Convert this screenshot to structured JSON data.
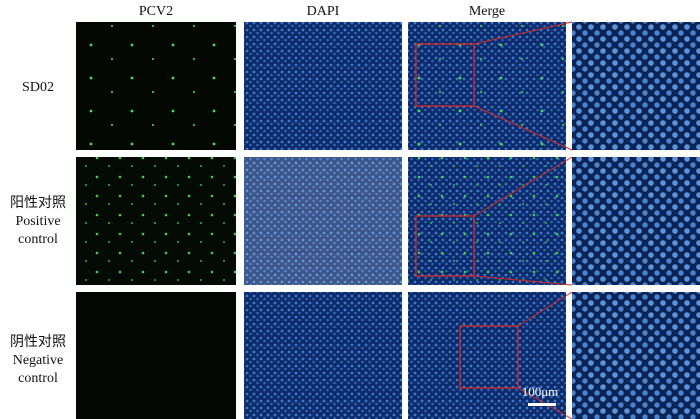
{
  "column_headers": [
    "PCV2",
    "DAPI",
    "Merge"
  ],
  "rows": [
    {
      "label": [
        "SD02"
      ]
    },
    {
      "label": [
        "阳性对照",
        "Positive",
        "control"
      ]
    },
    {
      "label": [
        "阴性对照",
        "Negative",
        "control"
      ]
    }
  ],
  "scale_bar": "100μm"
}
